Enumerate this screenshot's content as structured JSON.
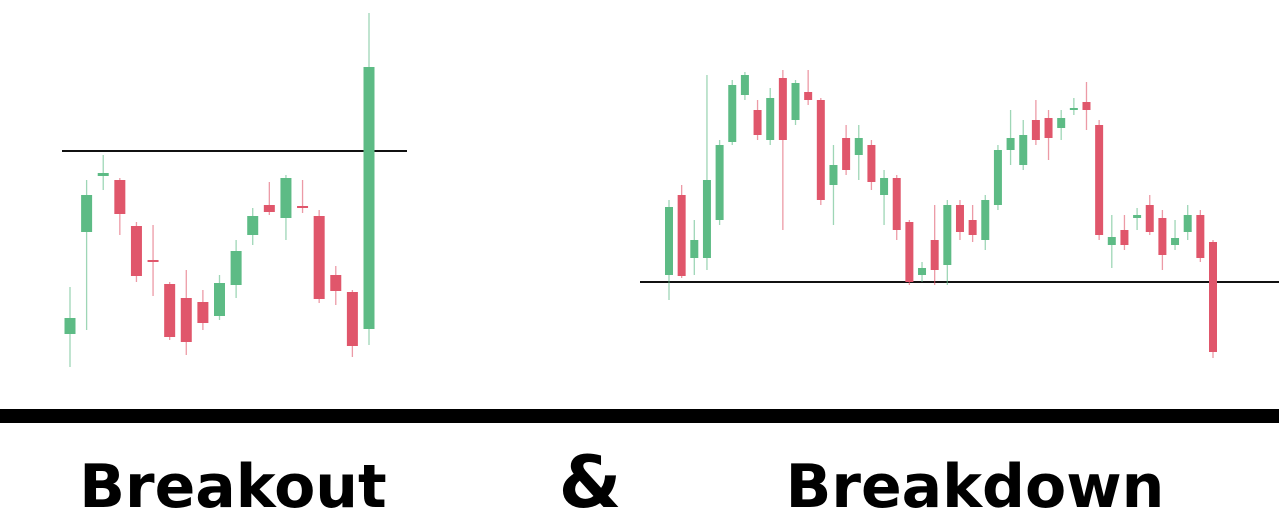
{
  "chart_data": [
    {
      "type": "candlestick",
      "title": "Breakout",
      "ylim": [
        0,
        400
      ],
      "level": 249,
      "level_color": "#111111",
      "up_color": "#5dbb85",
      "down_color": "#e0566b",
      "open": [
        66,
        168,
        224,
        220,
        174,
        140,
        116,
        102,
        98,
        84,
        115,
        165,
        195,
        182,
        194,
        184,
        125,
        108,
        71
      ],
      "close": [
        82,
        205,
        227,
        186,
        124,
        139,
        63,
        58,
        77,
        117,
        149,
        184,
        188,
        222,
        192,
        101,
        109,
        54,
        333
      ],
      "high": [
        113,
        220,
        245,
        222,
        178,
        175,
        118,
        130,
        110,
        125,
        160,
        192,
        218,
        225,
        220,
        190,
        134,
        110,
        387
      ],
      "low": [
        33,
        70,
        210,
        165,
        118,
        104,
        60,
        45,
        70,
        80,
        102,
        155,
        185,
        160,
        187,
        97,
        95,
        43,
        55
      ]
    },
    {
      "type": "candlestick",
      "title": "Breakdown",
      "ylim": [
        0,
        400
      ],
      "level": 118,
      "level_color": "#111111",
      "up_color": "#5dbb85",
      "down_color": "#e0566b",
      "open": [
        125,
        205,
        142,
        142,
        180,
        258,
        305,
        290,
        260,
        322,
        280,
        308,
        300,
        215,
        262,
        245,
        255,
        205,
        222,
        178,
        125,
        160,
        135,
        195,
        180,
        160,
        195,
        250,
        235,
        280,
        282,
        272,
        290,
        298,
        275,
        155,
        170,
        182,
        195,
        182,
        155,
        168,
        185,
        158
      ],
      "close": [
        193,
        124,
        160,
        220,
        255,
        315,
        325,
        265,
        302,
        260,
        317,
        300,
        200,
        235,
        230,
        262,
        218,
        222,
        170,
        118,
        132,
        130,
        195,
        168,
        165,
        200,
        250,
        262,
        265,
        260,
        262,
        282,
        292,
        290,
        165,
        163,
        155,
        185,
        168,
        145,
        162,
        185,
        142,
        48
      ],
      "high": [
        200,
        215,
        180,
        325,
        260,
        320,
        328,
        300,
        312,
        330,
        320,
        330,
        302,
        255,
        275,
        275,
        260,
        230,
        225,
        180,
        138,
        195,
        200,
        200,
        195,
        205,
        255,
        290,
        280,
        300,
        290,
        290,
        302,
        318,
        280,
        185,
        185,
        192,
        205,
        190,
        180,
        195,
        190,
        160
      ],
      "low": [
        100,
        122,
        125,
        130,
        175,
        255,
        300,
        260,
        255,
        170,
        275,
        295,
        195,
        175,
        225,
        220,
        210,
        175,
        160,
        115,
        118,
        115,
        115,
        160,
        158,
        150,
        190,
        235,
        230,
        255,
        240,
        260,
        285,
        270,
        160,
        132,
        150,
        170,
        165,
        130,
        150,
        160,
        138,
        42
      ]
    }
  ],
  "connector": "&"
}
